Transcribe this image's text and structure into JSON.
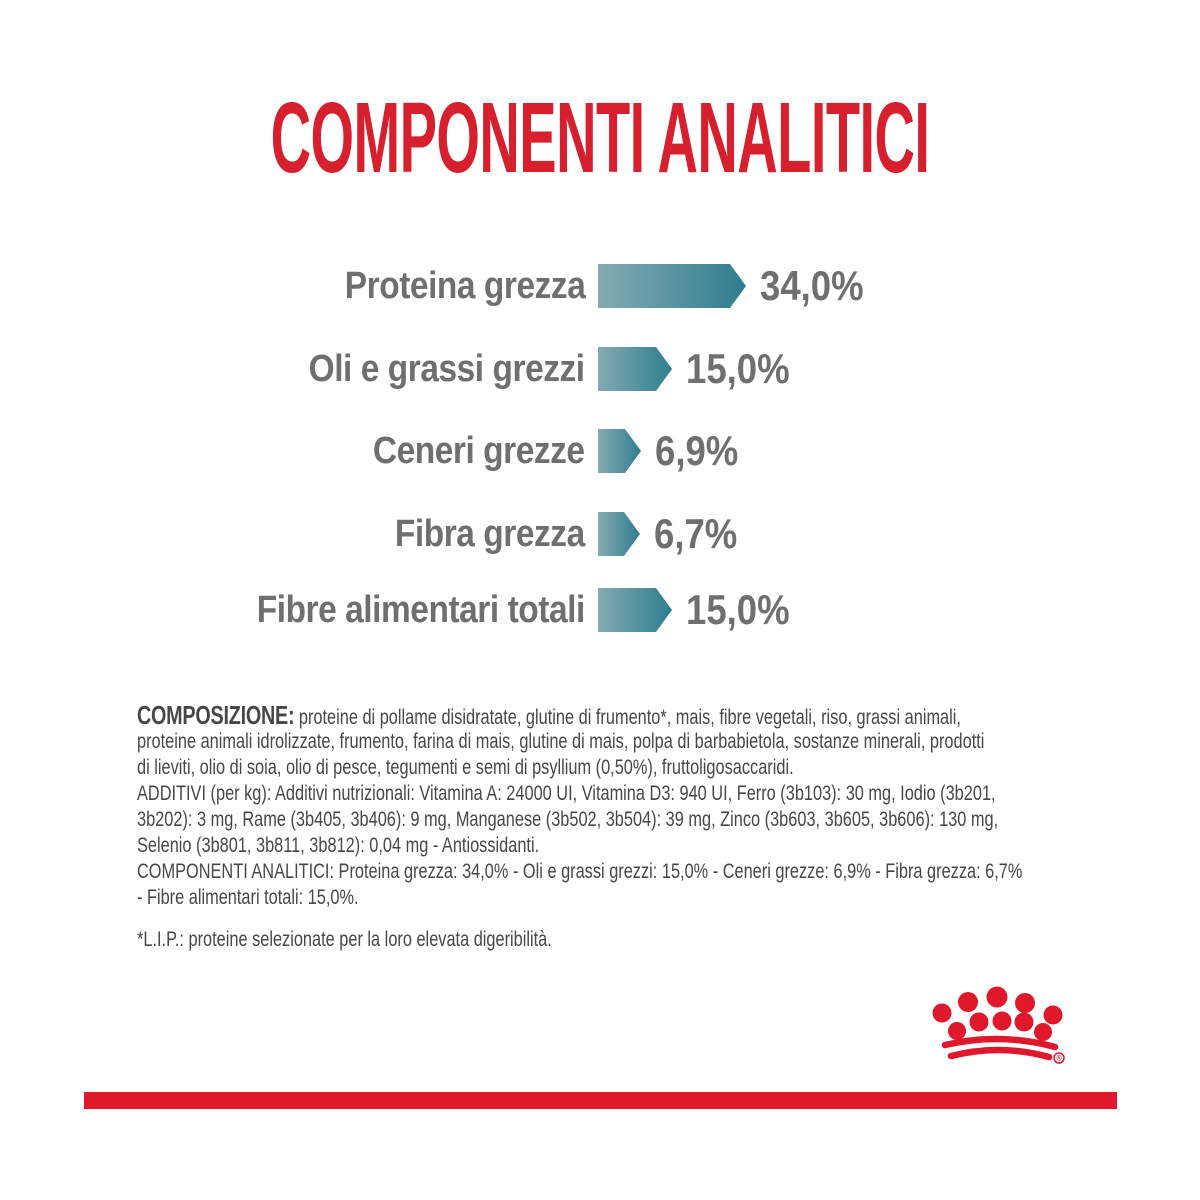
{
  "page": {
    "title": "COMPONENTI ANALITICI",
    "colors": {
      "title_red": "#d6202e",
      "brand_red": "#e0182b",
      "teal_light": "#85abb2",
      "teal_dark": "#2e7d90",
      "label_gray": "#6f6f6f",
      "body_gray": "#474747"
    }
  },
  "chart_data": {
    "type": "bar",
    "orientation": "horizontal",
    "title": "COMPONENTI ANALITICI",
    "categories": [
      "Proteina grezza",
      "Oli e grassi grezzi",
      "Ceneri grezze",
      "Fibra grezza",
      "Fibre alimentari totali"
    ],
    "values": [
      34.0,
      15.0,
      6.9,
      6.7,
      15.0
    ],
    "value_labels": [
      "34,0%",
      "15,0%",
      "6,9%",
      "6,7%",
      "15,0%"
    ],
    "unit": "%",
    "grid": false,
    "legend": false,
    "bar_shape": "arrow-right"
  },
  "composition": {
    "lead_label": "COMPOSIZIONE:",
    "intro_rest": " proteine di pollame disidratate, glutine di frumento*, mais, fibre vegetali, riso, grassi animali,",
    "lines": [
      "proteine animali idrolizzate, frumento, farina di mais, glutine di mais, polpa di barbabietola, sostanze minerali, prodotti",
      "di lieviti, olio di soia, olio di pesce, tegumenti e semi di psyllium (0,50%), fruttoligosaccaridi.",
      "ADDITIVI (per kg): Additivi nutrizionali: Vitamina A: 24000 UI, Vitamina D3: 940 UI, Ferro (3b103): 30 mg, Iodio (3b201,",
      "3b202): 3 mg, Rame (3b405, 3b406): 9 mg, Manganese (3b502, 3b504): 39 mg, Zinco (3b603, 3b605, 3b606): 130 mg,",
      "Selenio (3b801, 3b811, 3b812): 0,04 mg - Antiossidanti.",
      "COMPONENTI ANALITICI: Proteina grezza: 34,0% - Oli e grassi grezzi: 15,0% - Ceneri grezze: 6,9% - Fibra grezza: 6,7%",
      "- Fibre alimentari totali: 15,0%."
    ]
  },
  "footnote": "*L.I.P.: proteine selezionate per la loro elevata digeribilità.",
  "logo": {
    "name": "royal-canin-crown",
    "registered_mark": "®"
  }
}
